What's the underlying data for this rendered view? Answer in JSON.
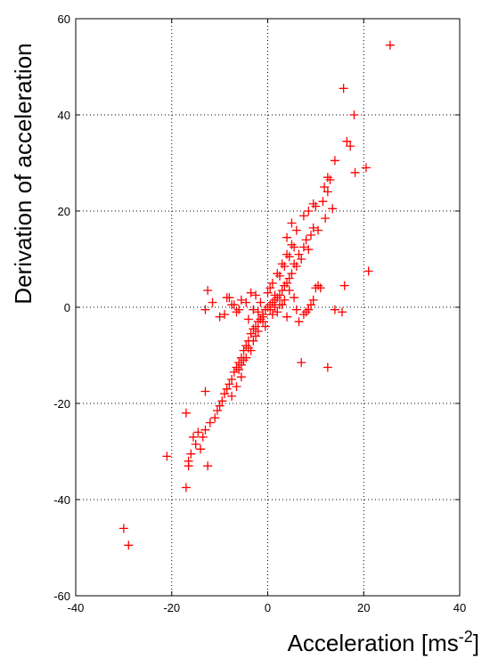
{
  "chart_data": {
    "type": "scatter",
    "xlabel": "Acceleration [ms",
    "xlabel_superscript": "-2",
    "xlabel_suffix": "]",
    "ylabel": "Derivation of acceleration",
    "xlim": [
      -40,
      40
    ],
    "ylim": [
      -60,
      60
    ],
    "x_ticks": [
      -40,
      -20,
      0,
      20,
      40
    ],
    "y_ticks": [
      -60,
      -40,
      -20,
      0,
      20,
      40,
      60
    ],
    "grid": true,
    "marker": "+",
    "colors": {
      "series": "#ff0000",
      "axes": "#000000",
      "background": "#ffffff"
    },
    "series": [
      {
        "x": [
          25.5,
          15.8,
          18.0,
          16.5,
          17.2,
          20.5,
          18.2,
          13.0,
          12.5,
          11.8,
          14.0,
          11.5,
          13.5,
          10.0,
          12.0,
          9.5,
          10.5,
          12.5,
          8.0,
          9.0,
          7.5,
          8.5,
          6.5,
          7.0,
          5.5,
          6.0,
          5.0,
          4.5,
          3.5,
          4.0,
          3.0,
          2.5,
          2.0,
          1.5,
          1.0,
          0.5,
          0.0,
          -0.5,
          -1.0,
          -1.5,
          -2.0,
          -2.5,
          -3.0,
          -3.5,
          -4.0,
          -4.5,
          -5.0,
          -5.5,
          -6.0,
          -6.5,
          -7.0,
          -7.5,
          -8.0,
          -8.5,
          -9.0,
          -9.5,
          -10.0,
          -10.5,
          -11.0,
          -12.0,
          -13.0,
          -13.5,
          -15.0,
          -16.0,
          -16.5,
          -17.0,
          -21.0,
          -16.5,
          -15.5,
          -14.0,
          -12.5,
          -30.0,
          -29.0,
          -13.0,
          -17.0,
          -14.5,
          21.0,
          16.0,
          12.5,
          15.5,
          7.0,
          10.0,
          14.0,
          4.5,
          5.5,
          3.5,
          2.5,
          1.5,
          0.5,
          -1.5,
          -2.5,
          -3.5,
          -5.5,
          -6.5,
          -7.5,
          -8.5,
          -9.0,
          -10.0,
          -11.5,
          -12.5,
          -13.0,
          3.0,
          6.0,
          8.0,
          9.0,
          9.5,
          10.5,
          11.0,
          -2.0,
          -4.0,
          -3.0,
          -1.0,
          1.0,
          2.0,
          4.0,
          6.5,
          7.5,
          8.5,
          -4.5,
          -6.0,
          -7.0,
          -8.0,
          5.0,
          4.0,
          3.0,
          2.0,
          1.0,
          0.0,
          -1.0,
          -2.0,
          -3.0,
          -4.0,
          -5.0,
          -6.0,
          6.0,
          5.0,
          4.0,
          -5.5,
          -6.5,
          -7.5,
          7.5,
          8.5,
          9.5,
          1.5,
          -1.5,
          0.5,
          -0.5,
          2.5,
          -2.5,
          3.5,
          -3.5,
          4.5,
          -4.5,
          5.5,
          -5.5
        ],
        "y": [
          54.5,
          45.5,
          40.0,
          34.5,
          33.5,
          29.0,
          28.0,
          26.5,
          27.0,
          25.0,
          30.5,
          22.0,
          20.5,
          21.0,
          18.5,
          16.5,
          16.0,
          24.0,
          14.0,
          15.0,
          12.5,
          12.0,
          11.0,
          10.0,
          9.0,
          8.5,
          7.0,
          6.0,
          4.5,
          5.0,
          3.5,
          2.5,
          2.0,
          1.5,
          1.0,
          0.5,
          0.0,
          -0.5,
          -1.5,
          -2.5,
          -3.0,
          -4.0,
          -4.5,
          -5.5,
          -7.0,
          -8.0,
          -9.0,
          -10.5,
          -11.5,
          -12.5,
          -13.5,
          -15.0,
          -16.0,
          -17.0,
          -18.0,
          -19.5,
          -20.5,
          -21.5,
          -23.0,
          -24.0,
          -25.5,
          -27.0,
          -28.5,
          -30.5,
          -32.0,
          -22.0,
          -31.0,
          -33.0,
          -27.0,
          -29.5,
          -33.0,
          -46.0,
          -49.5,
          -17.5,
          -37.5,
          -26.0,
          7.5,
          4.5,
          -12.5,
          -1.0,
          -11.5,
          4.0,
          -0.5,
          3.5,
          2.0,
          1.5,
          0.5,
          0.0,
          -0.5,
          1.0,
          2.5,
          3.0,
          1.5,
          -1.0,
          0.5,
          2.0,
          -1.5,
          -2.0,
          1.0,
          3.5,
          -0.5,
          0.5,
          -0.5,
          -1.0,
          0.5,
          1.5,
          4.5,
          4.0,
          -1.0,
          -2.5,
          -0.5,
          -2.0,
          -1.5,
          -1.0,
          -2.0,
          -3.0,
          -1.5,
          -0.5,
          1.0,
          -0.5,
          0.5,
          2.0,
          13.0,
          11.0,
          9.0,
          7.0,
          5.0,
          3.0,
          -3.0,
          -5.0,
          -7.0,
          -8.5,
          -11.0,
          -13.0,
          16.0,
          17.5,
          14.5,
          -14.5,
          -16.5,
          -18.5,
          19.0,
          20.0,
          21.5,
          2.5,
          -2.5,
          4.0,
          -4.0,
          6.5,
          -6.0,
          8.5,
          -9.0,
          10.5,
          -10.5,
          12.5,
          -12.0
        ]
      }
    ]
  }
}
